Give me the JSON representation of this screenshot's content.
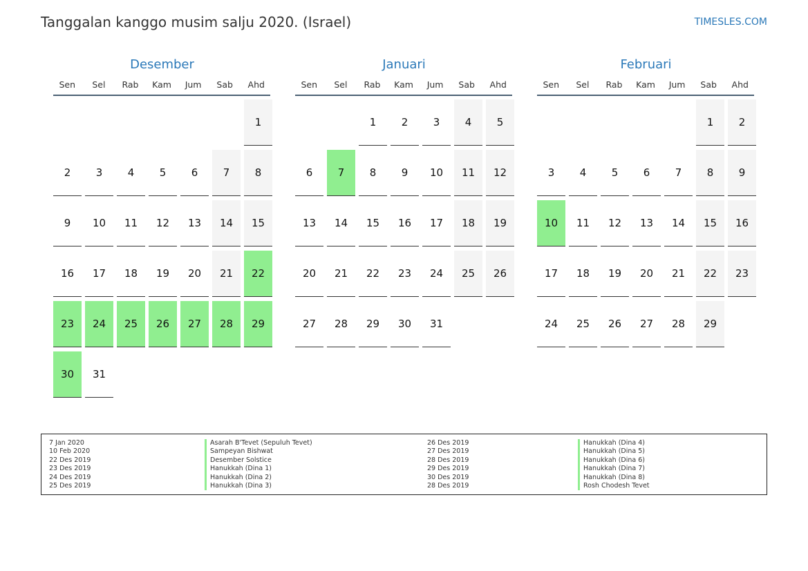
{
  "header": {
    "title": "Tanggalan kanggo musim salju 2020. (Israel)",
    "site": "TIMESLES.COM"
  },
  "weekdays": [
    "Sen",
    "Sel",
    "Rab",
    "Kam",
    "Jum",
    "Sab",
    "Ahd"
  ],
  "months": [
    {
      "name": "Desember",
      "offset": 6,
      "days": 31,
      "holidays": [
        22,
        23,
        24,
        25,
        26,
        27,
        28,
        29,
        30
      ]
    },
    {
      "name": "Januari",
      "offset": 2,
      "days": 31,
      "holidays": [
        7
      ]
    },
    {
      "name": "Februari",
      "offset": 5,
      "days": 29,
      "holidays": [
        10
      ]
    }
  ],
  "legend": {
    "left": [
      {
        "date": "7 Jan 2020",
        "name": "Asarah B'Tevet (Sepuluh Tevet)"
      },
      {
        "date": "10 Feb 2020",
        "name": "Sampeyan Bishwat"
      },
      {
        "date": "22 Des 2019",
        "name": "Desember Solstice"
      },
      {
        "date": "23 Des 2019",
        "name": "Hanukkah (Dina 1)"
      },
      {
        "date": "24 Des 2019",
        "name": "Hanukkah (Dina 2)"
      },
      {
        "date": "25 Des 2019",
        "name": "Hanukkah (Dina 3)"
      }
    ],
    "right": [
      {
        "date": "26 Des 2019",
        "name": "Hanukkah (Dina 4)"
      },
      {
        "date": "27 Des 2019",
        "name": "Hanukkah (Dina 5)"
      },
      {
        "date": "28 Des 2019",
        "name": "Hanukkah (Dina 6)"
      },
      {
        "date": "29 Des 2019",
        "name": "Hanukkah (Dina 7)"
      },
      {
        "date": "30 Des 2019",
        "name": "Hanukkah (Dina 8)"
      },
      {
        "date": "28 Des 2019",
        "name": "Rosh Chodesh Tevet"
      }
    ]
  }
}
